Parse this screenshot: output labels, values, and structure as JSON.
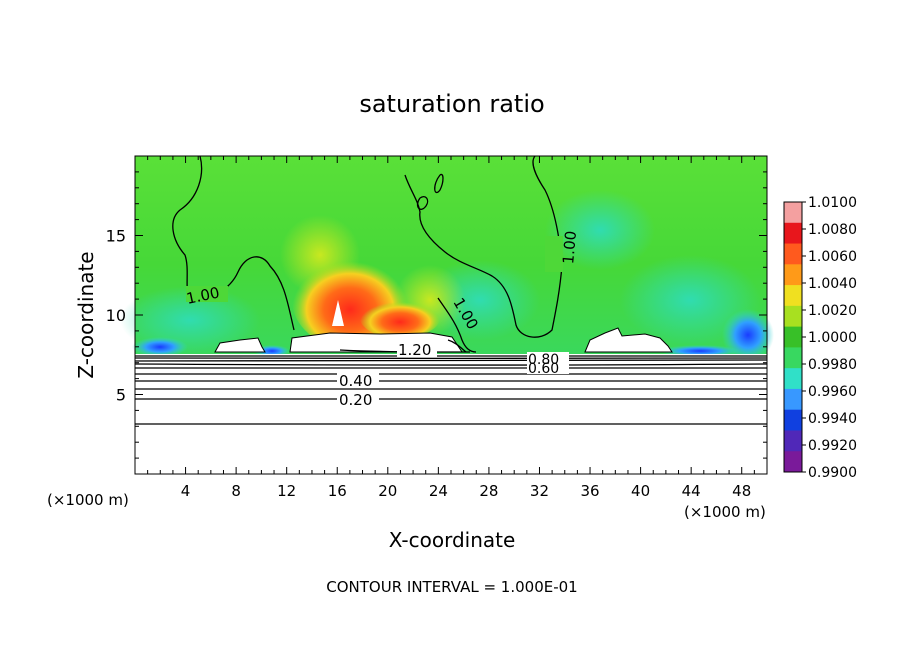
{
  "chart_data": {
    "type": "heatmap",
    "title": "saturation ratio",
    "xlabel": "X-coordinate",
    "ylabel": "Z-coordinate",
    "x_unit": "(×1000 m)",
    "x_unit_right": "(×1000 m)",
    "footer": "CONTOUR INTERVAL = 1.000E-01",
    "xlim": [
      0,
      50
    ],
    "ylim": [
      0,
      20
    ],
    "x_ticks": [
      "4",
      "8",
      "12",
      "16",
      "20",
      "24",
      "28",
      "32",
      "36",
      "40",
      "44",
      "48"
    ],
    "y_ticks": [
      "5",
      "10",
      "15"
    ],
    "colorbar": {
      "min": 0.99,
      "max": 1.01,
      "labels": [
        "1.0100",
        "1.0080",
        "1.0060",
        "1.0040",
        "1.0020",
        "1.0000",
        "0.9980",
        "0.9960",
        "0.9940",
        "0.9920",
        "0.9900"
      ],
      "colors": [
        "#f4a0a0",
        "#e8161c",
        "#ff5a1e",
        "#ff9a18",
        "#f0e020",
        "#a8e020",
        "#38c028",
        "#38d860",
        "#30e0c8",
        "#3898ff",
        "#1040e0",
        "#5028b8",
        "#7a1a9a"
      ]
    },
    "contour_labels": [
      "1.00",
      "1.00",
      "1.00",
      "1.20",
      "0.80",
      "0.60",
      "0.40",
      "0.20"
    ],
    "surface_level_km": 7.5,
    "lower_contour_levels": [
      {
        "level": "0.20",
        "z_km": 4.7
      },
      {
        "level": "0.40",
        "z_km": 5.9
      },
      {
        "level": "0.60",
        "z_km": 6.55
      },
      {
        "level": "0.80",
        "z_km": 6.9
      }
    ]
  }
}
